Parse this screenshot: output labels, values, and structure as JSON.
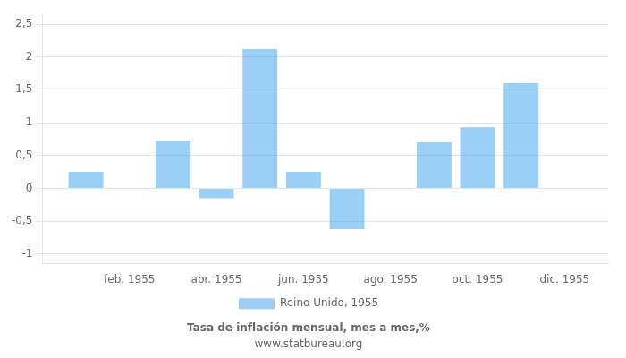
{
  "chart_data": {
    "type": "bar",
    "title": "Tasa de inflación mensual, mes a mes,%",
    "subtitle": "www.statbureau.org",
    "x": [
      1,
      3,
      4,
      5,
      6,
      7,
      9,
      10,
      11
    ],
    "series": [
      {
        "name": "Reino Unido, 1955",
        "values": [
          0.25,
          0.72,
          -0.15,
          2.12,
          0.25,
          -0.62,
          0.7,
          0.93,
          1.6
        ]
      }
    ],
    "xlim": [
      0,
      13
    ],
    "xticks": [
      {
        "value": 2,
        "label": "feb. 1955"
      },
      {
        "value": 4,
        "label": "abr. 1955"
      },
      {
        "value": 6,
        "label": "jun. 1955"
      },
      {
        "value": 8,
        "label": "ago. 1955"
      },
      {
        "value": 10,
        "label": "oct. 1955"
      },
      {
        "value": 12,
        "label": "dic. 1955"
      }
    ],
    "ylim": [
      -1.15,
      2.65
    ],
    "yticks": [
      -1,
      {
        "value": -0.5,
        "label": "-0,5"
      },
      0,
      {
        "value": 0.5,
        "label": "0,5"
      },
      1,
      {
        "value": 1.5,
        "label": "1,5"
      },
      2,
      {
        "value": 2.5,
        "label": "2,5"
      }
    ],
    "grid": "y",
    "legend": "bottom"
  }
}
